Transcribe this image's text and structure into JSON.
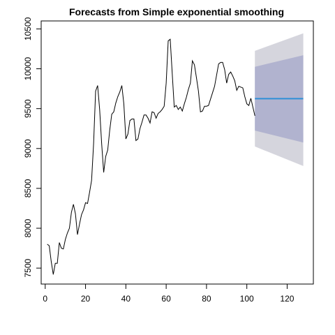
{
  "chart_data": {
    "type": "line",
    "title": "Forecasts from Simple exponential smoothing",
    "xlabel": "",
    "ylabel": "",
    "xlim": [
      -2,
      133
    ],
    "ylim": [
      7300,
      10600
    ],
    "x_ticks": [
      0,
      20,
      40,
      60,
      80,
      100,
      120
    ],
    "y_ticks": [
      7500,
      8000,
      8500,
      9000,
      9500,
      10000,
      10500
    ],
    "grid": false,
    "series": [
      {
        "role": "observed",
        "color": "#000000",
        "x_start": 1,
        "values": [
          7800,
          7780,
          7580,
          7420,
          7560,
          7560,
          7820,
          7750,
          7740,
          7860,
          7940,
          8000,
          8200,
          8300,
          8180,
          7920,
          8050,
          8170,
          8230,
          8320,
          8310,
          8450,
          8600,
          9060,
          9720,
          9790,
          9490,
          9060,
          8700,
          8900,
          8980,
          9230,
          9430,
          9460,
          9570,
          9650,
          9710,
          9790,
          9560,
          9120,
          9180,
          9350,
          9370,
          9370,
          9100,
          9120,
          9250,
          9330,
          9420,
          9420,
          9380,
          9320,
          9460,
          9450,
          9380,
          9440,
          9460,
          9490,
          9530,
          9820,
          10350,
          10370,
          9940,
          9520,
          9540,
          9490,
          9520,
          9470,
          9560,
          9640,
          9740,
          9820,
          10100,
          10050,
          9890,
          9720,
          9460,
          9470,
          9530,
          9530,
          9540,
          9620,
          9700,
          9780,
          9920,
          10060,
          10080,
          10080,
          9990,
          9820,
          9930,
          9960,
          9910,
          9850,
          9730,
          9780,
          9770,
          9760,
          9650,
          9560,
          9540,
          9630,
          9520,
          9410
        ]
      },
      {
        "role": "point forecast",
        "color": "#2e8fd6",
        "x_start": 104,
        "x_end": 128,
        "value": 9625
      }
    ],
    "intervals": [
      {
        "level": "95%",
        "color": "#d5d5dd",
        "lower_start": 9025,
        "lower_end": 8780,
        "upper_start": 10225,
        "upper_end": 10445
      },
      {
        "level": "80%",
        "color": "#b1b3cf",
        "lower_start": 9225,
        "lower_end": 9075,
        "upper_start": 10025,
        "upper_end": 10170
      }
    ]
  }
}
